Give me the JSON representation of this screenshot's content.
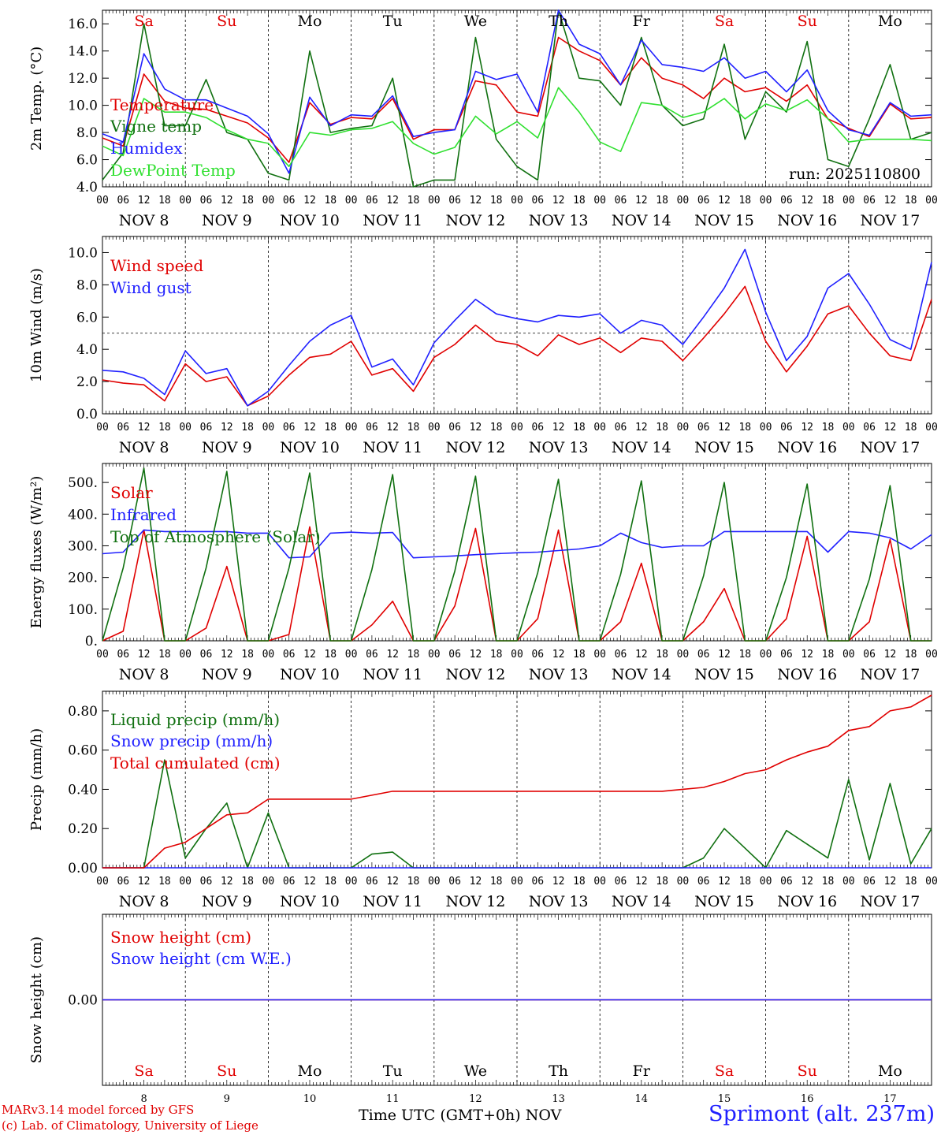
{
  "days": [
    "NOV 8",
    "NOV 9",
    "NOV 10",
    "NOV 11",
    "NOV 12",
    "NOV 13",
    "NOV 14",
    "NOV 15",
    "NOV 16",
    "NOV 17"
  ],
  "weekdays": [
    "Sa",
    "Su",
    "Mo",
    "Tu",
    "We",
    "Th",
    "Fr",
    "Sa",
    "Su",
    "Mo"
  ],
  "weekday_colors": [
    "#e00000",
    "#e00000",
    "#000000",
    "#000000",
    "#000000",
    "#000000",
    "#000000",
    "#e00000",
    "#e00000",
    "#000000"
  ],
  "hour_ticks": [
    "00",
    "06",
    "12",
    "18"
  ],
  "day_numbers": [
    "8",
    "9",
    "10",
    "11",
    "12",
    "13",
    "14",
    "15",
    "16",
    "17"
  ],
  "run_label": "run: 2025110800",
  "footer": {
    "credit_model": "MARv3.14 model forced by GFS",
    "credit_lab": "(c) Lab. of Climatology, University of Liege",
    "x_axis_label": "Time UTC (GMT+0h) NOV",
    "station": "Sprimont (alt. 237m)"
  },
  "chart_data": [
    {
      "type": "line",
      "ylabel": "2m Temp. (°C)",
      "ylim": [
        4,
        17
      ],
      "yticks": [
        "4.0",
        "6.0",
        "8.0",
        "10.0",
        "12.0",
        "14.0",
        "16.0"
      ],
      "legend": [
        "Temperature",
        "Vigne temp",
        "Humidex",
        "DewPoint Temp"
      ],
      "x_hours": [
        0,
        6,
        12,
        18,
        24,
        30,
        36,
        42,
        48,
        54,
        60,
        66,
        72,
        78,
        84,
        90,
        96,
        102,
        108,
        114,
        120,
        126,
        132,
        138,
        144,
        150,
        156,
        162,
        168,
        174,
        180,
        186,
        192,
        198,
        204,
        210,
        216,
        222,
        228,
        234,
        240
      ],
      "series": [
        {
          "name": "Temperature",
          "color": "#e00000",
          "values": [
            7.6,
            7,
            12.3,
            10.3,
            9.8,
            9.7,
            9.2,
            8.7,
            7.6,
            5.8,
            10.2,
            8.6,
            9.1,
            9,
            10.5,
            7.5,
            8.2,
            8.2,
            11.8,
            11.5,
            9.5,
            9.2,
            15,
            14,
            13.3,
            11.5,
            13.5,
            12,
            11.5,
            10.5,
            12,
            11,
            11.3,
            10.3,
            11.5,
            9,
            8.3,
            7.7,
            10.1,
            9,
            9.1
          ]
        },
        {
          "name": "Vigne temp",
          "color": "#107010",
          "values": [
            4.5,
            6.5,
            16,
            8.5,
            8.5,
            11.9,
            8,
            7.5,
            5,
            4.5,
            14,
            8,
            8.3,
            8.5,
            12,
            4,
            4.5,
            4.5,
            15,
            7.5,
            5.5,
            4.5,
            17,
            12,
            11.8,
            10,
            15,
            10,
            8.5,
            9,
            14.5,
            7.5,
            11,
            9.5,
            14.7,
            6,
            5.5,
            9,
            13,
            7.5,
            8
          ]
        },
        {
          "name": "Humidex",
          "color": "#2020ff",
          "values": [
            7.9,
            7.3,
            13.8,
            11.2,
            10.4,
            10.4,
            9.8,
            9.2,
            7.9,
            5,
            10.6,
            8.5,
            9.3,
            9.2,
            10.7,
            7.7,
            8,
            8.2,
            12.5,
            11.9,
            12.3,
            9.5,
            17,
            14.5,
            13.8,
            11.5,
            14.8,
            13,
            12.8,
            12.5,
            13.5,
            12,
            12.5,
            11,
            12.6,
            9.6,
            8.2,
            7.8,
            10.2,
            9.2,
            9.3
          ]
        },
        {
          "name": "DewPoint Temp",
          "color": "#30e030",
          "values": [
            7,
            6.3,
            10.5,
            9.5,
            9.5,
            9.1,
            8.2,
            7.5,
            7.2,
            5.5,
            8,
            7.8,
            8.2,
            8.3,
            8.8,
            7.2,
            6.4,
            6.9,
            9.2,
            7.9,
            8.8,
            7.6,
            11.3,
            9.5,
            7.3,
            6.6,
            10.2,
            10,
            9.1,
            9.5,
            10.5,
            9,
            10.1,
            9.6,
            10.4,
            9,
            7.3,
            7.5,
            7.5,
            7.5,
            7.4
          ]
        }
      ]
    },
    {
      "type": "line",
      "ylabel": "10m Wind (m/s)",
      "ylim": [
        0,
        11
      ],
      "yticks": [
        "0.0",
        "2.0",
        "4.0",
        "6.0",
        "8.0",
        "10.0"
      ],
      "reference_line": 5,
      "legend": [
        "Wind speed",
        "Wind gust"
      ],
      "x_hours": [
        0,
        6,
        12,
        18,
        24,
        30,
        36,
        42,
        48,
        54,
        60,
        66,
        72,
        78,
        84,
        90,
        96,
        102,
        108,
        114,
        120,
        126,
        132,
        138,
        144,
        150,
        156,
        162,
        168,
        174,
        180,
        186,
        192,
        198,
        204,
        210,
        216,
        222,
        228,
        234,
        240
      ],
      "series": [
        {
          "name": "Wind speed",
          "color": "#e00000",
          "values": [
            2.1,
            1.9,
            1.8,
            0.8,
            3.1,
            2,
            2.3,
            0.5,
            1.1,
            2.4,
            3.5,
            3.7,
            4.5,
            2.4,
            2.8,
            1.4,
            3.5,
            4.3,
            5.5,
            4.5,
            4.3,
            3.6,
            4.9,
            4.3,
            4.7,
            3.8,
            4.7,
            4.5,
            3.3,
            4.7,
            6.2,
            7.9,
            4.5,
            2.6,
            4.2,
            6.2,
            6.7,
            5,
            3.6,
            3.3,
            7.1
          ]
        },
        {
          "name": "Wind gust",
          "color": "#2020ff",
          "values": [
            2.7,
            2.6,
            2.2,
            1.2,
            3.9,
            2.5,
            2.8,
            0.5,
            1.4,
            3,
            4.5,
            5.5,
            6.1,
            2.9,
            3.4,
            1.8,
            4.4,
            5.8,
            7.1,
            6.2,
            5.9,
            5.7,
            6.1,
            6,
            6.2,
            5,
            5.8,
            5.5,
            4.3,
            6,
            7.8,
            10.2,
            6.3,
            3.3,
            4.8,
            7.8,
            8.7,
            6.8,
            4.6,
            4,
            9.4
          ]
        }
      ]
    },
    {
      "type": "line",
      "ylabel": "Energy fluxes (W/m²)",
      "ylim": [
        0,
        560
      ],
      "yticks": [
        "0.",
        "100.",
        "200.",
        "300.",
        "400.",
        "500."
      ],
      "legend": [
        "Solar",
        "Infrared",
        "Top of Atmosphere (Solar)"
      ],
      "x_hours": [
        0,
        6,
        12,
        18,
        24,
        30,
        36,
        42,
        48,
        54,
        60,
        66,
        72,
        78,
        84,
        90,
        96,
        102,
        108,
        114,
        120,
        126,
        132,
        138,
        144,
        150,
        156,
        162,
        168,
        174,
        180,
        186,
        192,
        198,
        204,
        210,
        216,
        222,
        228,
        234,
        240
      ],
      "series": [
        {
          "name": "Solar",
          "color": "#e00000",
          "values": [
            0,
            30,
            350,
            0,
            0,
            40,
            235,
            0,
            0,
            20,
            360,
            0,
            0,
            50,
            125,
            0,
            0,
            110,
            355,
            0,
            0,
            70,
            350,
            0,
            0,
            60,
            245,
            0,
            0,
            60,
            165,
            0,
            0,
            70,
            330,
            0,
            0,
            60,
            320,
            0,
            0
          ]
        },
        {
          "name": "Infrared",
          "color": "#2020ff",
          "values": [
            275,
            280,
            350,
            345,
            345,
            345,
            345,
            340,
            340,
            262,
            265,
            340,
            343,
            340,
            342,
            262,
            265,
            268,
            272,
            275,
            278,
            280,
            285,
            290,
            300,
            340,
            310,
            295,
            300,
            300,
            345,
            345,
            345,
            345,
            345,
            280,
            345,
            340,
            325,
            290,
            335
          ]
        },
        {
          "name": "Top of Atmosphere (Solar)",
          "color": "#107010",
          "values": [
            0,
            230,
            545,
            0,
            0,
            230,
            535,
            0,
            0,
            230,
            530,
            0,
            0,
            225,
            525,
            0,
            0,
            220,
            520,
            0,
            0,
            215,
            510,
            0,
            0,
            210,
            505,
            0,
            0,
            205,
            500,
            0,
            0,
            200,
            495,
            0,
            0,
            195,
            490,
            0,
            0
          ]
        }
      ]
    },
    {
      "type": "line",
      "ylabel": "Precip (mm/h)",
      "ylim": [
        0,
        0.9
      ],
      "yticks": [
        "0.00",
        "0.20",
        "0.40",
        "0.60",
        "0.80"
      ],
      "legend": [
        "Liquid precip (mm/h)",
        "Snow precip (mm/h)",
        "Total cumulated (cm)"
      ],
      "x_hours": [
        0,
        6,
        12,
        18,
        24,
        30,
        36,
        42,
        48,
        54,
        60,
        66,
        72,
        78,
        84,
        90,
        96,
        102,
        108,
        114,
        120,
        126,
        132,
        138,
        144,
        150,
        156,
        162,
        168,
        174,
        180,
        186,
        192,
        198,
        204,
        210,
        216,
        222,
        228,
        234,
        240
      ],
      "series": [
        {
          "name": "Liquid precip (mm/h)",
          "color": "#107010",
          "values": [
            0,
            0,
            0,
            0.55,
            0.05,
            0.2,
            0.33,
            0,
            0.28,
            0,
            0,
            0,
            0,
            0.07,
            0.08,
            0,
            0,
            0,
            0,
            0,
            0,
            0,
            0,
            0,
            0,
            0,
            0,
            0,
            0,
            0.05,
            0.2,
            0.1,
            0,
            0.19,
            0.12,
            0.05,
            0.45,
            0.04,
            0.43,
            0.02,
            0.2
          ]
        },
        {
          "name": "Snow precip (mm/h)",
          "color": "#2020ff",
          "values": [
            0,
            0,
            0,
            0,
            0,
            0,
            0,
            0,
            0,
            0,
            0,
            0,
            0,
            0,
            0,
            0,
            0,
            0,
            0,
            0,
            0,
            0,
            0,
            0,
            0,
            0,
            0,
            0,
            0,
            0,
            0,
            0,
            0,
            0,
            0,
            0,
            0,
            0,
            0,
            0,
            0
          ]
        },
        {
          "name": "Total cumulated (cm)",
          "color": "#e00000",
          "values": [
            0,
            0,
            0,
            0.1,
            0.13,
            0.2,
            0.27,
            0.28,
            0.35,
            0.35,
            0.35,
            0.35,
            0.35,
            0.37,
            0.39,
            0.39,
            0.39,
            0.39,
            0.39,
            0.39,
            0.39,
            0.39,
            0.39,
            0.39,
            0.39,
            0.39,
            0.39,
            0.39,
            0.4,
            0.41,
            0.44,
            0.48,
            0.5,
            0.55,
            0.59,
            0.62,
            0.7,
            0.72,
            0.8,
            0.82,
            0.88
          ]
        }
      ]
    },
    {
      "type": "line",
      "ylabel": "Snow height (cm)",
      "ylim": [
        -1,
        1
      ],
      "yticks": [
        "0.00"
      ],
      "legend": [
        "Snow height (cm)",
        "Snow height (cm W.E.)"
      ],
      "x_hours": [
        0,
        240
      ],
      "series": [
        {
          "name": "Snow height (cm)",
          "color": "#e00000",
          "values": [
            0,
            0
          ]
        },
        {
          "name": "Snow height (cm W.E.)",
          "color": "#2020ff",
          "values": [
            0,
            0
          ]
        }
      ]
    }
  ]
}
